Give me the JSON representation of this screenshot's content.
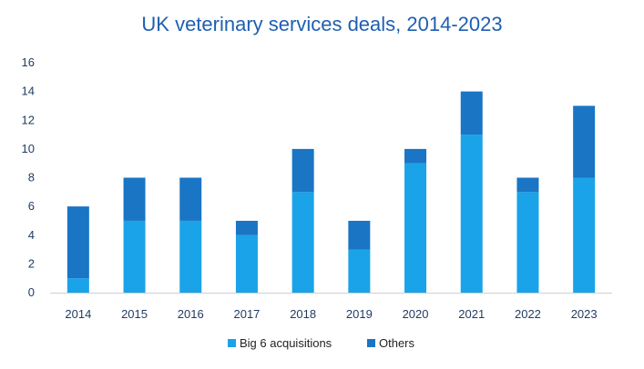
{
  "chart_data": {
    "type": "bar",
    "stacked": true,
    "title": "UK veterinary services deals, 2014-2023",
    "categories": [
      "2014",
      "2015",
      "2016",
      "2017",
      "2018",
      "2019",
      "2020",
      "2021",
      "2022",
      "2023"
    ],
    "series": [
      {
        "name": "Big 6 acquisitions",
        "color": "#1aa3e8",
        "values": [
          1,
          5,
          5,
          4,
          7,
          3,
          9,
          11,
          7,
          8
        ]
      },
      {
        "name": "Others",
        "color": "#1a75c4",
        "values": [
          5,
          3,
          3,
          1,
          3,
          2,
          1,
          3,
          1,
          5
        ]
      }
    ],
    "yticks": [
      0,
      2,
      4,
      6,
      8,
      10,
      12,
      14,
      16
    ],
    "ylim": [
      0,
      16
    ],
    "xlabel": "",
    "ylabel": "",
    "grid": false,
    "legend_position": "bottom"
  }
}
